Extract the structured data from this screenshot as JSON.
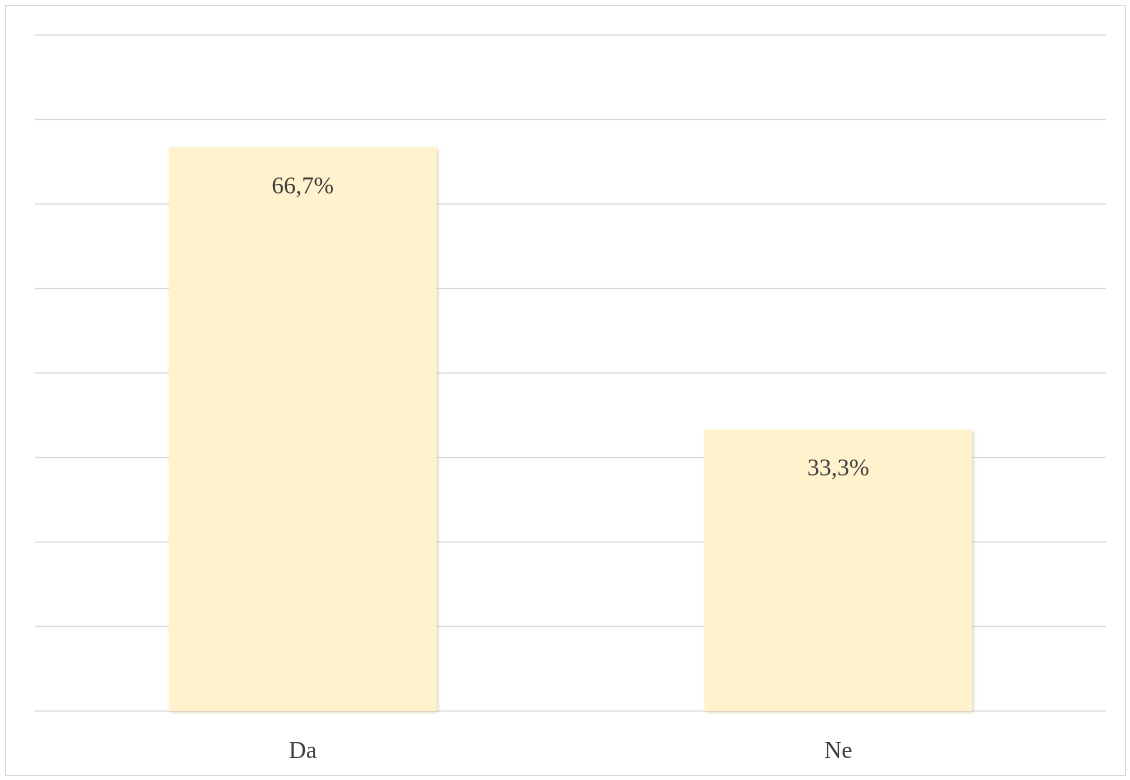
{
  "chart_data": {
    "type": "bar",
    "categories": [
      "Da",
      "Ne"
    ],
    "values": [
      66.7,
      33.3
    ],
    "data_labels": [
      "66,7%",
      "33,3%"
    ],
    "ylim": [
      0,
      80
    ],
    "gridlines": true,
    "title": "",
    "xlabel": "",
    "ylabel": "",
    "colors": {
      "bar_fill": "#fff2cc",
      "bar_shadow": "#d9cfae",
      "grid": "#d9d9d9",
      "text": "#404040"
    }
  }
}
